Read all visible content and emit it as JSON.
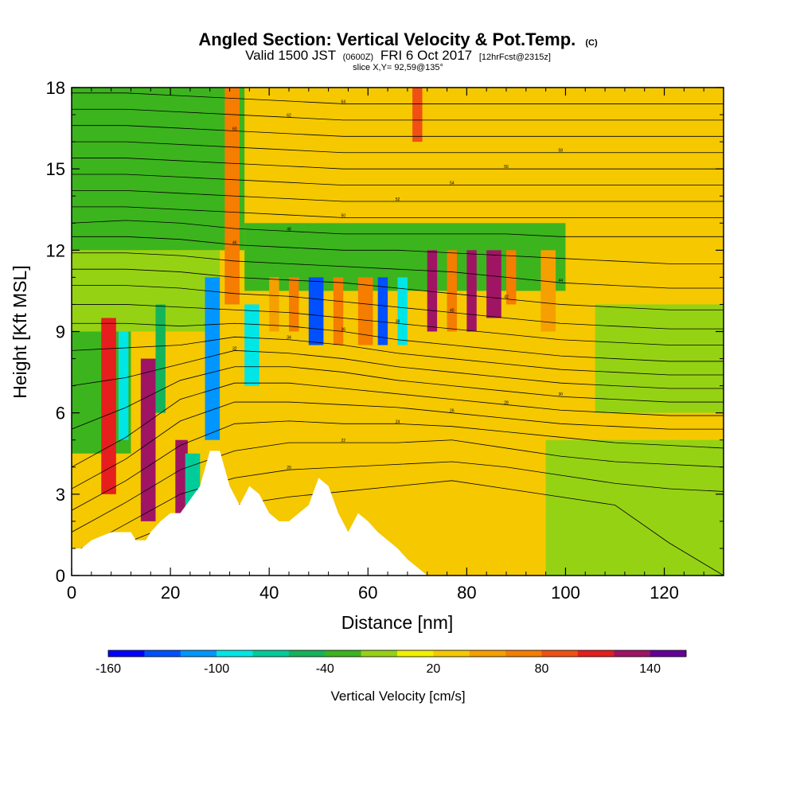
{
  "chart_data": {
    "type": "heatmap",
    "title": "Angled Section: Vertical Velocity & Pot.Temp.",
    "title_unit": "(C)",
    "subtitle": {
      "valid": "Valid 1500 JST",
      "zulu": "(0600Z)",
      "date": "FRI 6 Oct 2017",
      "forecast": "[12hrFcst@2315z]"
    },
    "slice_label": "slice X,Y= 92,59@135°",
    "xlabel": "Distance [nm]",
    "ylabel": "Height [Kft MSL]",
    "xlim": [
      0,
      132
    ],
    "ylim": [
      0,
      18
    ],
    "x_ticks": [
      "0",
      "20",
      "40",
      "60",
      "80",
      "100",
      "120"
    ],
    "y_ticks": [
      "0",
      "3",
      "6",
      "9",
      "12",
      "15",
      "18"
    ],
    "colorbar": {
      "title": "Vertical Velocity [cm/s]",
      "labels": [
        "-160",
        "-100",
        "-40",
        "20",
        "80",
        "140"
      ],
      "colors": [
        "#0000ff",
        "#0050ff",
        "#0096ff",
        "#00e6e6",
        "#00cc99",
        "#14b45a",
        "#3cb41e",
        "#96d214",
        "#f0f000",
        "#f5c800",
        "#f5a000",
        "#f57d00",
        "#f05014",
        "#e61e1e",
        "#a01464",
        "#640096"
      ]
    },
    "cells": [
      {
        "x0": 0,
        "x1": 132,
        "y0": 0,
        "y1": 18,
        "v": 20
      },
      {
        "x0": 0,
        "x1": 35,
        "y0": 12,
        "y1": 18,
        "v": -30
      },
      {
        "x0": 35,
        "x1": 100,
        "y0": 10.5,
        "y1": 13,
        "v": -30
      },
      {
        "x0": 0,
        "x1": 12,
        "y0": 4.5,
        "y1": 10,
        "v": -30
      },
      {
        "x0": 96,
        "x1": 132,
        "y0": 0,
        "y1": 5,
        "v": -10
      },
      {
        "x0": 106,
        "x1": 132,
        "y0": 6,
        "y1": 10,
        "v": -10
      },
      {
        "x0": 0,
        "x1": 30,
        "y0": 9,
        "y1": 12,
        "v": -10
      },
      {
        "x0": 6,
        "x1": 9,
        "y0": 3,
        "y1": 9.5,
        "v": 100
      },
      {
        "x0": 9.5,
        "x1": 11.5,
        "y0": 5,
        "y1": 9,
        "v": -100
      },
      {
        "x0": 14,
        "x1": 17,
        "y0": 2,
        "y1": 8,
        "v": 130
      },
      {
        "x0": 17,
        "x1": 19,
        "y0": 6,
        "y1": 10,
        "v": -60
      },
      {
        "x0": 21,
        "x1": 23.5,
        "y0": 2,
        "y1": 5,
        "v": 120
      },
      {
        "x0": 23,
        "x1": 26,
        "y0": 1.8,
        "y1": 4.5,
        "v": -80
      },
      {
        "x0": 27,
        "x1": 30,
        "y0": 5,
        "y1": 11,
        "v": -110
      },
      {
        "x0": 31,
        "x1": 34,
        "y0": 10,
        "y1": 18,
        "v": 60
      },
      {
        "x0": 35,
        "x1": 38,
        "y0": 7,
        "y1": 10,
        "v": -90
      },
      {
        "x0": 40,
        "x1": 42,
        "y0": 9,
        "y1": 11,
        "v": 50
      },
      {
        "x0": 44,
        "x1": 46,
        "y0": 9,
        "y1": 11,
        "v": 70
      },
      {
        "x0": 48,
        "x1": 51,
        "y0": 8.5,
        "y1": 11,
        "v": -130
      },
      {
        "x0": 53,
        "x1": 55,
        "y0": 8.5,
        "y1": 11,
        "v": 60
      },
      {
        "x0": 58,
        "x1": 61,
        "y0": 8.5,
        "y1": 11,
        "v": 70
      },
      {
        "x0": 62,
        "x1": 64,
        "y0": 8.5,
        "y1": 11,
        "v": -140
      },
      {
        "x0": 66,
        "x1": 68,
        "y0": 8.5,
        "y1": 11,
        "v": -90
      },
      {
        "x0": 69,
        "x1": 71,
        "y0": 16,
        "y1": 18,
        "v": 80
      },
      {
        "x0": 72,
        "x1": 74,
        "y0": 9,
        "y1": 12,
        "v": 130
      },
      {
        "x0": 76,
        "x1": 78,
        "y0": 9,
        "y1": 12,
        "v": 60
      },
      {
        "x0": 80,
        "x1": 82,
        "y0": 9,
        "y1": 12,
        "v": 120
      },
      {
        "x0": 84,
        "x1": 87,
        "y0": 9.5,
        "y1": 12,
        "v": 120
      },
      {
        "x0": 88,
        "x1": 90,
        "y0": 10,
        "y1": 12,
        "v": 70
      },
      {
        "x0": 95,
        "x1": 98,
        "y0": 9,
        "y1": 12,
        "v": 40
      }
    ],
    "terrain": [
      [
        0,
        1
      ],
      [
        2,
        1
      ],
      [
        4,
        1.3
      ],
      [
        8,
        1.6
      ],
      [
        12,
        1.6
      ],
      [
        13,
        1.3
      ],
      [
        15,
        1.3
      ],
      [
        16,
        1.6
      ],
      [
        18,
        2
      ],
      [
        20,
        2.3
      ],
      [
        22,
        2.3
      ],
      [
        26,
        3.3
      ],
      [
        28,
        4.6
      ],
      [
        30,
        4.6
      ],
      [
        32,
        3.3
      ],
      [
        34,
        2.6
      ],
      [
        36,
        3.3
      ],
      [
        38,
        3
      ],
      [
        40,
        2.3
      ],
      [
        42,
        2
      ],
      [
        44,
        2
      ],
      [
        46,
        2.3
      ],
      [
        48,
        2.6
      ],
      [
        50,
        3.6
      ],
      [
        52,
        3.3
      ],
      [
        54,
        2.3
      ],
      [
        56,
        1.6
      ],
      [
        58,
        2.3
      ],
      [
        60,
        2
      ],
      [
        62,
        1.6
      ],
      [
        64,
        1.3
      ],
      [
        66,
        1
      ],
      [
        68,
        0.6
      ],
      [
        70,
        0.3
      ],
      [
        72,
        0
      ]
    ],
    "isotherms": [
      {
        "label": "18",
        "y": [
          0.3,
          1.2,
          2,
          2.6,
          2.9,
          3.1,
          3.3,
          3.5,
          3.2,
          2.9,
          2.6,
          1.2,
          0
        ]
      },
      {
        "label": "20",
        "y": [
          0.8,
          1.9,
          3,
          3.6,
          3.9,
          4,
          4.1,
          4.2,
          4,
          3.7,
          3.4,
          3.2,
          3.1
        ]
      },
      {
        "label": "22",
        "y": [
          1.6,
          2.7,
          3.9,
          4.6,
          4.9,
          4.9,
          4.9,
          5,
          4.7,
          4.4,
          4.2,
          4.1,
          4
        ]
      },
      {
        "label": "24",
        "y": [
          2.4,
          3.5,
          4.8,
          5.6,
          5.7,
          5.6,
          5.6,
          5.5,
          5.3,
          5.1,
          4.9,
          4.8,
          4.7
        ]
      },
      {
        "label": "26",
        "y": [
          3.2,
          4.3,
          5.7,
          6.4,
          6.4,
          6.3,
          6.2,
          6,
          5.8,
          5.6,
          5.5,
          5.4,
          5.4
        ]
      },
      {
        "label": "28",
        "y": [
          4,
          5.1,
          6.5,
          7.1,
          7.1,
          6.9,
          6.7,
          6.5,
          6.3,
          6.1,
          6,
          5.9,
          5.9
        ]
      },
      {
        "label": "30",
        "y": [
          5.4,
          6.2,
          7.2,
          7.7,
          7.7,
          7.5,
          7.2,
          7,
          6.8,
          6.6,
          6.5,
          6.4,
          6.4
        ]
      },
      {
        "label": "32",
        "y": [
          7,
          7.3,
          7.8,
          8.3,
          8.2,
          8,
          7.7,
          7.5,
          7.3,
          7.1,
          7,
          6.9,
          6.9
        ]
      },
      {
        "label": "34",
        "y": [
          8.3,
          8.4,
          8.5,
          8.8,
          8.7,
          8.5,
          8.2,
          8,
          7.8,
          7.6,
          7.5,
          7.4,
          7.4
        ]
      },
      {
        "label": "36",
        "y": [
          9.3,
          9.3,
          9.2,
          9.3,
          9.2,
          9,
          8.7,
          8.5,
          8.3,
          8.1,
          8,
          7.9,
          7.9
        ]
      },
      {
        "label": "38",
        "y": [
          10,
          10,
          9.9,
          9.8,
          9.7,
          9.5,
          9.3,
          9.1,
          8.9,
          8.7,
          8.6,
          8.5,
          8.5
        ]
      },
      {
        "label": "40",
        "y": [
          10.7,
          10.7,
          10.6,
          10.4,
          10.3,
          10.1,
          9.9,
          9.7,
          9.5,
          9.3,
          9.2,
          9.1,
          9.1
        ]
      },
      {
        "label": "42",
        "y": [
          11.3,
          11.3,
          11.2,
          11,
          10.9,
          10.8,
          10.6,
          10.4,
          10.2,
          10,
          9.9,
          9.8,
          9.8
        ]
      },
      {
        "label": "44",
        "y": [
          11.9,
          11.9,
          11.8,
          11.6,
          11.5,
          11.4,
          11.3,
          11.2,
          11,
          10.8,
          10.7,
          10.6,
          10.6
        ]
      },
      {
        "label": "46",
        "y": [
          12.5,
          12.5,
          12.4,
          12.2,
          12.1,
          12,
          12,
          11.9,
          11.8,
          11.7,
          11.6,
          11.5,
          11.5
        ]
      },
      {
        "label": "48",
        "y": [
          13,
          13.1,
          13,
          12.8,
          12.7,
          12.6,
          12.6,
          12.6,
          12.6,
          12.5,
          12.5,
          12.5,
          12.5
        ]
      },
      {
        "label": "50",
        "y": [
          13.6,
          13.6,
          13.5,
          13.4,
          13.3,
          13.2,
          13.2,
          13.2,
          13.2,
          13.2,
          13.2,
          13.2,
          13.2
        ]
      },
      {
        "label": "52",
        "y": [
          14.2,
          14.2,
          14.1,
          14,
          13.9,
          13.8,
          13.8,
          13.8,
          13.8,
          13.8,
          13.8,
          13.8,
          13.8
        ]
      },
      {
        "label": "54",
        "y": [
          14.8,
          14.8,
          14.7,
          14.6,
          14.5,
          14.4,
          14.4,
          14.4,
          14.4,
          14.4,
          14.4,
          14.4,
          14.4
        ]
      },
      {
        "label": "56",
        "y": [
          15.4,
          15.4,
          15.3,
          15.2,
          15.1,
          15,
          15,
          15,
          15,
          15,
          15,
          15,
          15
        ]
      },
      {
        "label": "58",
        "y": [
          16,
          16,
          15.9,
          15.8,
          15.7,
          15.6,
          15.6,
          15.6,
          15.6,
          15.6,
          15.6,
          15.6,
          15.6
        ]
      },
      {
        "label": "60",
        "y": [
          16.6,
          16.6,
          16.5,
          16.4,
          16.3,
          16.2,
          16.2,
          16.2,
          16.2,
          16.2,
          16.2,
          16.2,
          16.2
        ]
      },
      {
        "label": "62",
        "y": [
          17.2,
          17.2,
          17.1,
          17,
          16.9,
          16.8,
          16.8,
          16.8,
          16.8,
          16.8,
          16.8,
          16.8,
          16.8
        ]
      },
      {
        "label": "64",
        "y": [
          17.8,
          17.8,
          17.7,
          17.6,
          17.5,
          17.4,
          17.4,
          17.4,
          17.4,
          17.4,
          17.4,
          17.4,
          17.4
        ]
      }
    ],
    "isotherm_x": [
      0,
      11,
      22,
      33,
      44,
      55,
      66,
      77,
      88,
      99,
      110,
      121,
      132
    ]
  }
}
